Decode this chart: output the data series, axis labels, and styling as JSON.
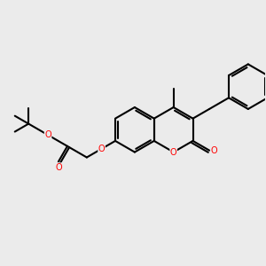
{
  "bg_color": "#ebebeb",
  "bond_color": "#000000",
  "oxygen_color": "#ff0000",
  "lw": 1.5,
  "figsize": [
    3.0,
    3.0
  ],
  "dpi": 100,
  "xlim": [
    0,
    10
  ],
  "ylim": [
    0,
    10
  ]
}
